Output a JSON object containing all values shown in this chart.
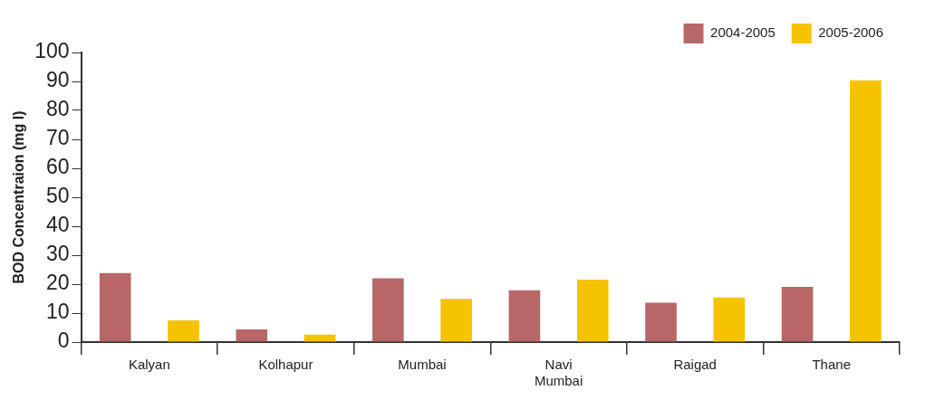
{
  "chart_data": {
    "type": "bar",
    "ylabel": "BOD Concentraion (mg l)",
    "categories": [
      "Kalyan",
      "Kolhapur",
      "Mumbai",
      "Navi Mumbai",
      "Raigad",
      "Thane"
    ],
    "series": [
      {
        "name": "2004-2005",
        "color": "#b86666",
        "values": [
          23.8,
          4.4,
          22.0,
          17.9,
          13.6,
          19.1
        ]
      },
      {
        "name": "2005-2006",
        "color": "#f6c300",
        "values": [
          7.5,
          2.6,
          14.9,
          21.6,
          15.4,
          90.4
        ]
      }
    ],
    "ylim": [
      0,
      100
    ],
    "yticks": [
      0,
      10,
      20,
      30,
      40,
      50,
      60,
      70,
      80,
      90,
      100
    ],
    "grid": false,
    "legend": "top right"
  }
}
